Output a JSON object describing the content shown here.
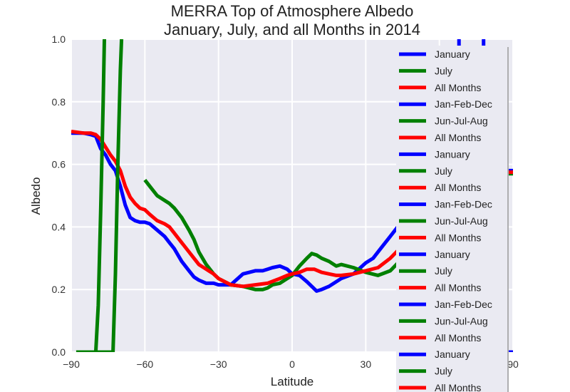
{
  "chart_data": {
    "type": "line",
    "title": [
      "MERRA Top of Atmosphere Albedo",
      "January, July, and all Months in 2014"
    ],
    "xlabel": "Latitude",
    "ylabel": "Albedo",
    "xlim": [
      -90,
      90
    ],
    "ylim": [
      0.0,
      1.0
    ],
    "xticks": [
      -90,
      -60,
      -30,
      0,
      30,
      60,
      90
    ],
    "xtick_labels": [
      "−90",
      "−60",
      "−30",
      "0",
      "30",
      "60",
      "90"
    ],
    "yticks": [
      0.0,
      0.2,
      0.4,
      0.6,
      0.8,
      1.0
    ],
    "ytick_labels": [
      "0.0",
      "0.2",
      "0.4",
      "0.6",
      "0.8",
      "1.0"
    ],
    "grid": true,
    "background": "#eaeaf2",
    "legend": {
      "placement": "right",
      "entries": [
        {
          "label": "January",
          "color": "#0000ff"
        },
        {
          "label": "July",
          "color": "#008000"
        },
        {
          "label": "All Months",
          "color": "#ff0000"
        },
        {
          "label": "Jan-Feb-Dec",
          "color": "#0000ff"
        },
        {
          "label": "Jun-Jul-Aug",
          "color": "#008000"
        },
        {
          "label": "All Months",
          "color": "#ff0000"
        },
        {
          "label": "January",
          "color": "#0000ff"
        },
        {
          "label": "July",
          "color": "#008000"
        },
        {
          "label": "All Months",
          "color": "#ff0000"
        },
        {
          "label": "Jan-Feb-Dec",
          "color": "#0000ff"
        },
        {
          "label": "Jun-Jul-Aug",
          "color": "#008000"
        },
        {
          "label": "All Months",
          "color": "#ff0000"
        },
        {
          "label": "January",
          "color": "#0000ff"
        },
        {
          "label": "July",
          "color": "#008000"
        },
        {
          "label": "All Months",
          "color": "#ff0000"
        },
        {
          "label": "Jan-Feb-Dec",
          "color": "#0000ff"
        },
        {
          "label": "Jun-Jul-Aug",
          "color": "#008000"
        },
        {
          "label": "All Months",
          "color": "#ff0000"
        },
        {
          "label": "January",
          "color": "#0000ff"
        },
        {
          "label": "July",
          "color": "#008000"
        },
        {
          "label": "All Months",
          "color": "#ff0000"
        }
      ]
    },
    "series": [
      {
        "color": "#0000ff",
        "x": [
          -90,
          -85,
          -82,
          -80,
          -78,
          -76,
          -74,
          -72,
          -70,
          -68,
          -66,
          -64,
          -62,
          -60,
          -58,
          -55,
          -52,
          -50,
          -48,
          -45,
          -42,
          -40,
          -38,
          -35,
          -32,
          -30,
          -25,
          -20,
          -15,
          -12,
          -10,
          -8,
          -5,
          -2,
          0,
          3,
          6,
          10,
          12,
          15,
          20,
          25,
          30,
          33,
          36,
          40,
          45,
          50,
          55,
          60,
          65,
          70,
          75,
          80,
          85,
          90
        ],
        "y": [
          0.7,
          0.7,
          0.695,
          0.69,
          0.65,
          0.63,
          0.6,
          0.58,
          0.53,
          0.47,
          0.43,
          0.42,
          0.415,
          0.415,
          0.41,
          0.39,
          0.37,
          0.35,
          0.33,
          0.29,
          0.26,
          0.24,
          0.23,
          0.22,
          0.22,
          0.215,
          0.215,
          0.25,
          0.26,
          0.26,
          0.265,
          0.27,
          0.275,
          0.265,
          0.25,
          0.245,
          0.225,
          0.195,
          0.2,
          0.21,
          0.235,
          0.25,
          0.285,
          0.3,
          0.33,
          0.37,
          0.42,
          0.47,
          0.51,
          0.54,
          0.56,
          0.57,
          0.575,
          0.58,
          0.58,
          0.58
        ]
      },
      {
        "color": "#008000",
        "x": [
          -60,
          -58,
          -55,
          -52,
          -50,
          -48,
          -45,
          -42,
          -40,
          -38,
          -35,
          -32,
          -30,
          -25,
          -20,
          -15,
          -12,
          -10,
          -8,
          -5,
          -2,
          0,
          3,
          6,
          8,
          10,
          12,
          15,
          18,
          20,
          25,
          30,
          35,
          40,
          45,
          50,
          55,
          60,
          65,
          70,
          75,
          80,
          85,
          90
        ],
        "y": [
          0.55,
          0.53,
          0.5,
          0.485,
          0.475,
          0.46,
          0.43,
          0.39,
          0.36,
          0.32,
          0.28,
          0.25,
          0.235,
          0.215,
          0.21,
          0.2,
          0.2,
          0.205,
          0.215,
          0.22,
          0.235,
          0.245,
          0.275,
          0.3,
          0.315,
          0.31,
          0.3,
          0.29,
          0.275,
          0.28,
          0.27,
          0.255,
          0.245,
          0.26,
          0.3,
          0.36,
          0.42,
          0.47,
          0.51,
          0.54,
          0.56,
          0.565,
          0.57,
          0.57
        ]
      },
      {
        "color": "#ff0000",
        "x": [
          -90,
          -85,
          -82,
          -80,
          -78,
          -76,
          -74,
          -72,
          -70,
          -68,
          -66,
          -64,
          -62,
          -60,
          -58,
          -55,
          -52,
          -50,
          -48,
          -45,
          -42,
          -40,
          -38,
          -35,
          -32,
          -30,
          -25,
          -20,
          -15,
          -10,
          -5,
          -2,
          0,
          3,
          6,
          9,
          12,
          15,
          18,
          20,
          25,
          30,
          35,
          40,
          45,
          50,
          55,
          60,
          65,
          70,
          75,
          80,
          85,
          90
        ],
        "y": [
          0.705,
          0.7,
          0.7,
          0.695,
          0.68,
          0.655,
          0.63,
          0.61,
          0.58,
          0.53,
          0.495,
          0.475,
          0.46,
          0.455,
          0.44,
          0.42,
          0.41,
          0.4,
          0.38,
          0.35,
          0.32,
          0.3,
          0.28,
          0.265,
          0.25,
          0.235,
          0.215,
          0.21,
          0.215,
          0.22,
          0.235,
          0.245,
          0.25,
          0.255,
          0.265,
          0.265,
          0.255,
          0.25,
          0.245,
          0.245,
          0.25,
          0.26,
          0.27,
          0.3,
          0.34,
          0.39,
          0.44,
          0.49,
          0.52,
          0.55,
          0.565,
          0.57,
          0.575,
          0.575
        ]
      },
      {
        "color": "#008000",
        "x": [
          -82,
          -80,
          -79,
          -78,
          -77,
          -76.5
        ],
        "y": [
          0.0,
          0.0,
          0.15,
          0.45,
          0.8,
          1.0
        ]
      },
      {
        "color": "#008000",
        "x": [
          -88,
          -73,
          -72,
          -71,
          -70,
          -69.5
        ],
        "y": [
          0.0,
          0.0,
          0.25,
          0.6,
          0.9,
          1.0
        ]
      },
      {
        "color": "#0000ff",
        "x": [
          86,
          90
        ],
        "y": [
          0.0,
          0.0
        ]
      },
      {
        "color": "#0000ff",
        "x": [
          68,
          68
        ],
        "y": [
          0.97,
          1.0
        ]
      },
      {
        "color": "#0000ff",
        "x": [
          78,
          78
        ],
        "y": [
          0.97,
          1.0
        ]
      }
    ]
  }
}
